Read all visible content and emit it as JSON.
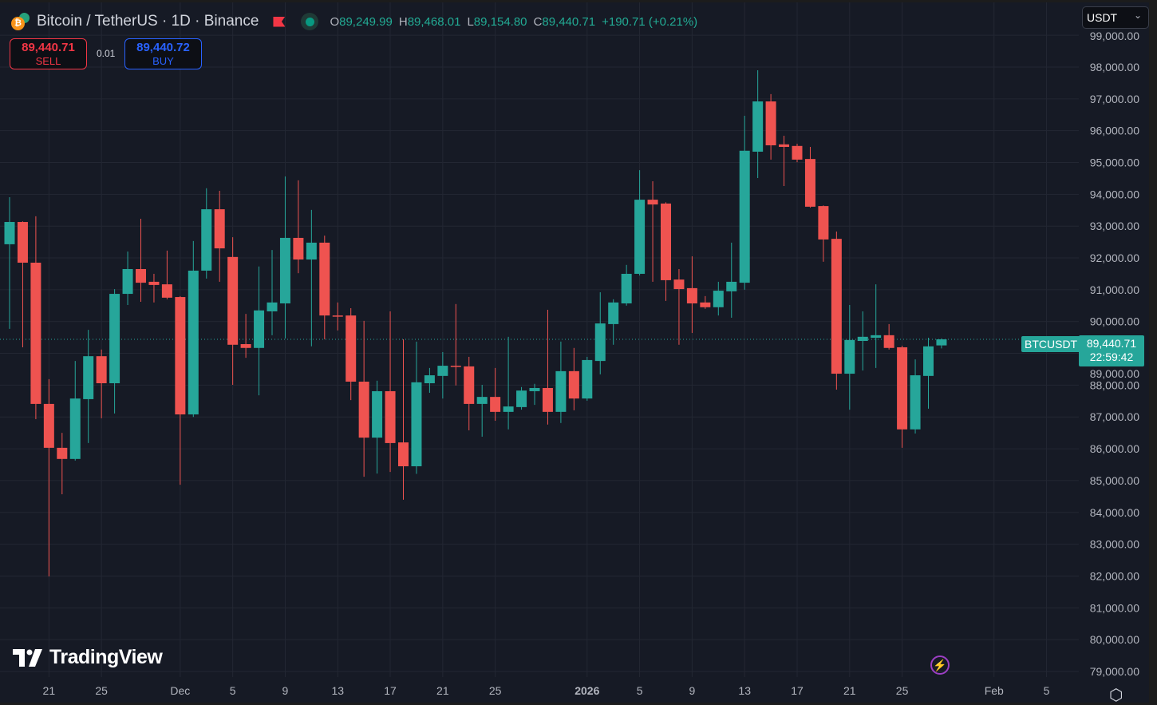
{
  "header": {
    "symbol_title": "Bitcoin / TetherUS · 1D · Binance",
    "ohlc": {
      "o_label": "O",
      "o_value": "89,249.99",
      "h_label": "H",
      "h_value": "89,468.01",
      "l_label": "L",
      "l_value": "89,154.80",
      "c_label": "C",
      "c_value": "89,440.71",
      "change": "+190.71 (+0.21%)"
    }
  },
  "trade": {
    "sell_price": "89,440.71",
    "sell_label": "SELL",
    "spread": "0.01",
    "buy_price": "89,440.72",
    "buy_label": "BUY"
  },
  "currency_select": {
    "value": "USDT"
  },
  "last_price": {
    "symbol": "BTCUSDT",
    "price": "89,440.71",
    "countdown": "22:59:42"
  },
  "brand": {
    "name": "TradingView"
  },
  "colors": {
    "up": "#26a69a",
    "down": "#ef5350",
    "background": "#161a25",
    "grid": "#232733"
  },
  "chart_data": {
    "type": "candlestick",
    "title": "Bitcoin / TetherUS · 1D · Binance",
    "ylim": [
      78600,
      99100
    ],
    "last_price": 89440.71,
    "ytick_values": [
      79000,
      80000,
      81000,
      82000,
      83000,
      84000,
      85000,
      86000,
      87000,
      88000,
      89000,
      90000,
      91000,
      92000,
      93000,
      94000,
      95000,
      96000,
      97000,
      98000,
      99000
    ],
    "ytick_labels": [
      "79,000.00",
      "80,000.00",
      "81,000.00",
      "82,000.00",
      "83,000.00",
      "84,000.00",
      "85,000.00",
      "86,000.00",
      "87,000.00",
      "88,000.00",
      "89,000.00",
      "90,000.00",
      "91,000.00",
      "92,000.00",
      "93,000.00",
      "94,000.00",
      "95,000.00",
      "96,000.00",
      "97,000.00",
      "98,000.00",
      "99,000.00"
    ],
    "xticks": [
      {
        "date": "2025-11-21",
        "label": "21"
      },
      {
        "date": "2025-11-25",
        "label": "25"
      },
      {
        "date": "2025-12-01",
        "label": "Dec"
      },
      {
        "date": "2025-12-05",
        "label": "5"
      },
      {
        "date": "2025-12-09",
        "label": "9"
      },
      {
        "date": "2025-12-13",
        "label": "13"
      },
      {
        "date": "2025-12-17",
        "label": "17"
      },
      {
        "date": "2025-12-21",
        "label": "21"
      },
      {
        "date": "2025-12-25",
        "label": "25"
      },
      {
        "date": "2026-01-01",
        "label": "2026"
      },
      {
        "date": "2026-01-05",
        "label": "5"
      },
      {
        "date": "2026-01-09",
        "label": "9"
      },
      {
        "date": "2026-01-13",
        "label": "13"
      },
      {
        "date": "2026-01-17",
        "label": "17"
      },
      {
        "date": "2026-01-21",
        "label": "21"
      },
      {
        "date": "2026-01-25",
        "label": "25"
      },
      {
        "date": "2026-02-01",
        "label": "Feb"
      },
      {
        "date": "2026-02-05",
        "label": "5"
      }
    ],
    "candle_fields": [
      "date",
      "open",
      "high",
      "low",
      "close"
    ],
    "candles": [
      [
        "2025-11-18",
        92430,
        93910,
        89770,
        93130
      ],
      [
        "2025-11-19",
        93130,
        93150,
        89190,
        91850
      ],
      [
        "2025-11-20",
        91850,
        93310,
        86930,
        87410
      ],
      [
        "2025-11-21",
        87410,
        88190,
        81990,
        86030
      ],
      [
        "2025-11-22",
        86030,
        86500,
        84570,
        85680
      ],
      [
        "2025-11-23",
        85680,
        88760,
        85630,
        87580
      ],
      [
        "2025-11-24",
        87560,
        89740,
        86180,
        88910
      ],
      [
        "2025-11-25",
        88910,
        89120,
        86960,
        88060
      ],
      [
        "2025-11-26",
        88060,
        91020,
        87110,
        90870
      ],
      [
        "2025-11-27",
        90870,
        92200,
        90520,
        91650
      ],
      [
        "2025-11-28",
        91650,
        93230,
        90620,
        91220
      ],
      [
        "2025-11-29",
        91250,
        91500,
        90600,
        91150
      ],
      [
        "2025-11-30",
        91170,
        92230,
        90700,
        90750
      ],
      [
        "2025-12-01",
        90770,
        90800,
        84870,
        87080
      ],
      [
        "2025-12-02",
        87080,
        92530,
        87000,
        91600
      ],
      [
        "2025-12-03",
        91600,
        94190,
        91350,
        93530
      ],
      [
        "2025-12-04",
        93530,
        94110,
        91250,
        92300
      ],
      [
        "2025-12-05",
        92030,
        92650,
        88010,
        89270
      ],
      [
        "2025-12-06",
        89290,
        90240,
        88860,
        89170
      ],
      [
        "2025-12-07",
        89170,
        91730,
        87680,
        90350
      ],
      [
        "2025-12-08",
        90320,
        92250,
        89570,
        90600
      ],
      [
        "2025-12-09",
        90570,
        94560,
        89470,
        92630
      ],
      [
        "2025-12-10",
        92630,
        94440,
        91520,
        91950
      ],
      [
        "2025-12-11",
        91950,
        93510,
        89220,
        92480
      ],
      [
        "2025-12-12",
        92480,
        92700,
        89440,
        90190
      ],
      [
        "2025-12-13",
        90190,
        90600,
        89720,
        90170
      ],
      [
        "2025-12-14",
        90190,
        90420,
        87530,
        88110
      ],
      [
        "2025-12-15",
        88110,
        90020,
        85120,
        86350
      ],
      [
        "2025-12-16",
        86350,
        88140,
        85220,
        87810
      ],
      [
        "2025-12-17",
        87810,
        90320,
        85270,
        86180
      ],
      [
        "2025-12-18",
        86200,
        89440,
        84400,
        85450
      ],
      [
        "2025-12-19",
        85450,
        89370,
        85210,
        88090
      ],
      [
        "2025-12-20",
        88060,
        88540,
        87760,
        88310
      ],
      [
        "2025-12-21",
        88290,
        89040,
        87580,
        88610
      ],
      [
        "2025-12-22",
        88610,
        90550,
        87990,
        88590
      ],
      [
        "2025-12-23",
        88590,
        88890,
        86580,
        87410
      ],
      [
        "2025-12-24",
        87410,
        88010,
        86380,
        87630
      ],
      [
        "2025-12-25",
        87630,
        88540,
        86880,
        87160
      ],
      [
        "2025-12-26",
        87160,
        89520,
        86610,
        87330
      ],
      [
        "2025-12-27",
        87310,
        87940,
        87230,
        87830
      ],
      [
        "2025-12-28",
        87810,
        88040,
        87380,
        87910
      ],
      [
        "2025-12-29",
        87910,
        90370,
        86760,
        87160
      ],
      [
        "2025-12-30",
        87160,
        89370,
        86810,
        88440
      ],
      [
        "2025-12-31",
        88440,
        89170,
        87210,
        87580
      ],
      [
        "2026-01-01",
        87580,
        88890,
        87510,
        88790
      ],
      [
        "2026-01-02",
        88760,
        90920,
        88340,
        89940
      ],
      [
        "2026-01-03",
        89920,
        90700,
        89270,
        90600
      ],
      [
        "2026-01-04",
        90570,
        91780,
        90500,
        91500
      ],
      [
        "2026-01-05",
        91500,
        94760,
        91450,
        93830
      ],
      [
        "2026-01-06",
        93830,
        94410,
        91250,
        93680
      ],
      [
        "2026-01-07",
        93710,
        93750,
        90650,
        91300
      ],
      [
        "2026-01-08",
        91320,
        91650,
        89270,
        91020
      ],
      [
        "2026-01-09",
        91050,
        92050,
        89640,
        90570
      ],
      [
        "2026-01-10",
        90600,
        90800,
        90400,
        90450
      ],
      [
        "2026-01-11",
        90450,
        91250,
        90190,
        90970
      ],
      [
        "2026-01-12",
        90950,
        92480,
        90120,
        91250
      ],
      [
        "2026-01-13",
        91220,
        96470,
        91000,
        95370
      ],
      [
        "2026-01-14",
        95340,
        97900,
        94510,
        96920
      ],
      [
        "2026-01-15",
        96920,
        97150,
        95090,
        95540
      ],
      [
        "2026-01-16",
        95570,
        95840,
        94260,
        95490
      ],
      [
        "2026-01-17",
        95520,
        95590,
        95010,
        95090
      ],
      [
        "2026-01-18",
        95110,
        95490,
        93580,
        93610
      ],
      [
        "2026-01-19",
        93630,
        93650,
        91880,
        92580
      ],
      [
        "2026-01-20",
        92600,
        92830,
        87860,
        88360
      ],
      [
        "2026-01-21",
        88360,
        90520,
        87230,
        89420
      ],
      [
        "2026-01-22",
        89390,
        90320,
        88460,
        89520
      ],
      [
        "2026-01-23",
        89490,
        91170,
        88540,
        89570
      ],
      [
        "2026-01-24",
        89570,
        89920,
        89120,
        89170
      ],
      [
        "2026-01-25",
        89190,
        89240,
        86030,
        86610
      ],
      [
        "2026-01-26",
        86610,
        88810,
        86480,
        88310
      ],
      [
        "2026-01-27",
        88290,
        89490,
        87260,
        89220
      ],
      [
        "2026-01-28",
        89249.99,
        89468.01,
        89154.8,
        89440.71
      ]
    ]
  }
}
